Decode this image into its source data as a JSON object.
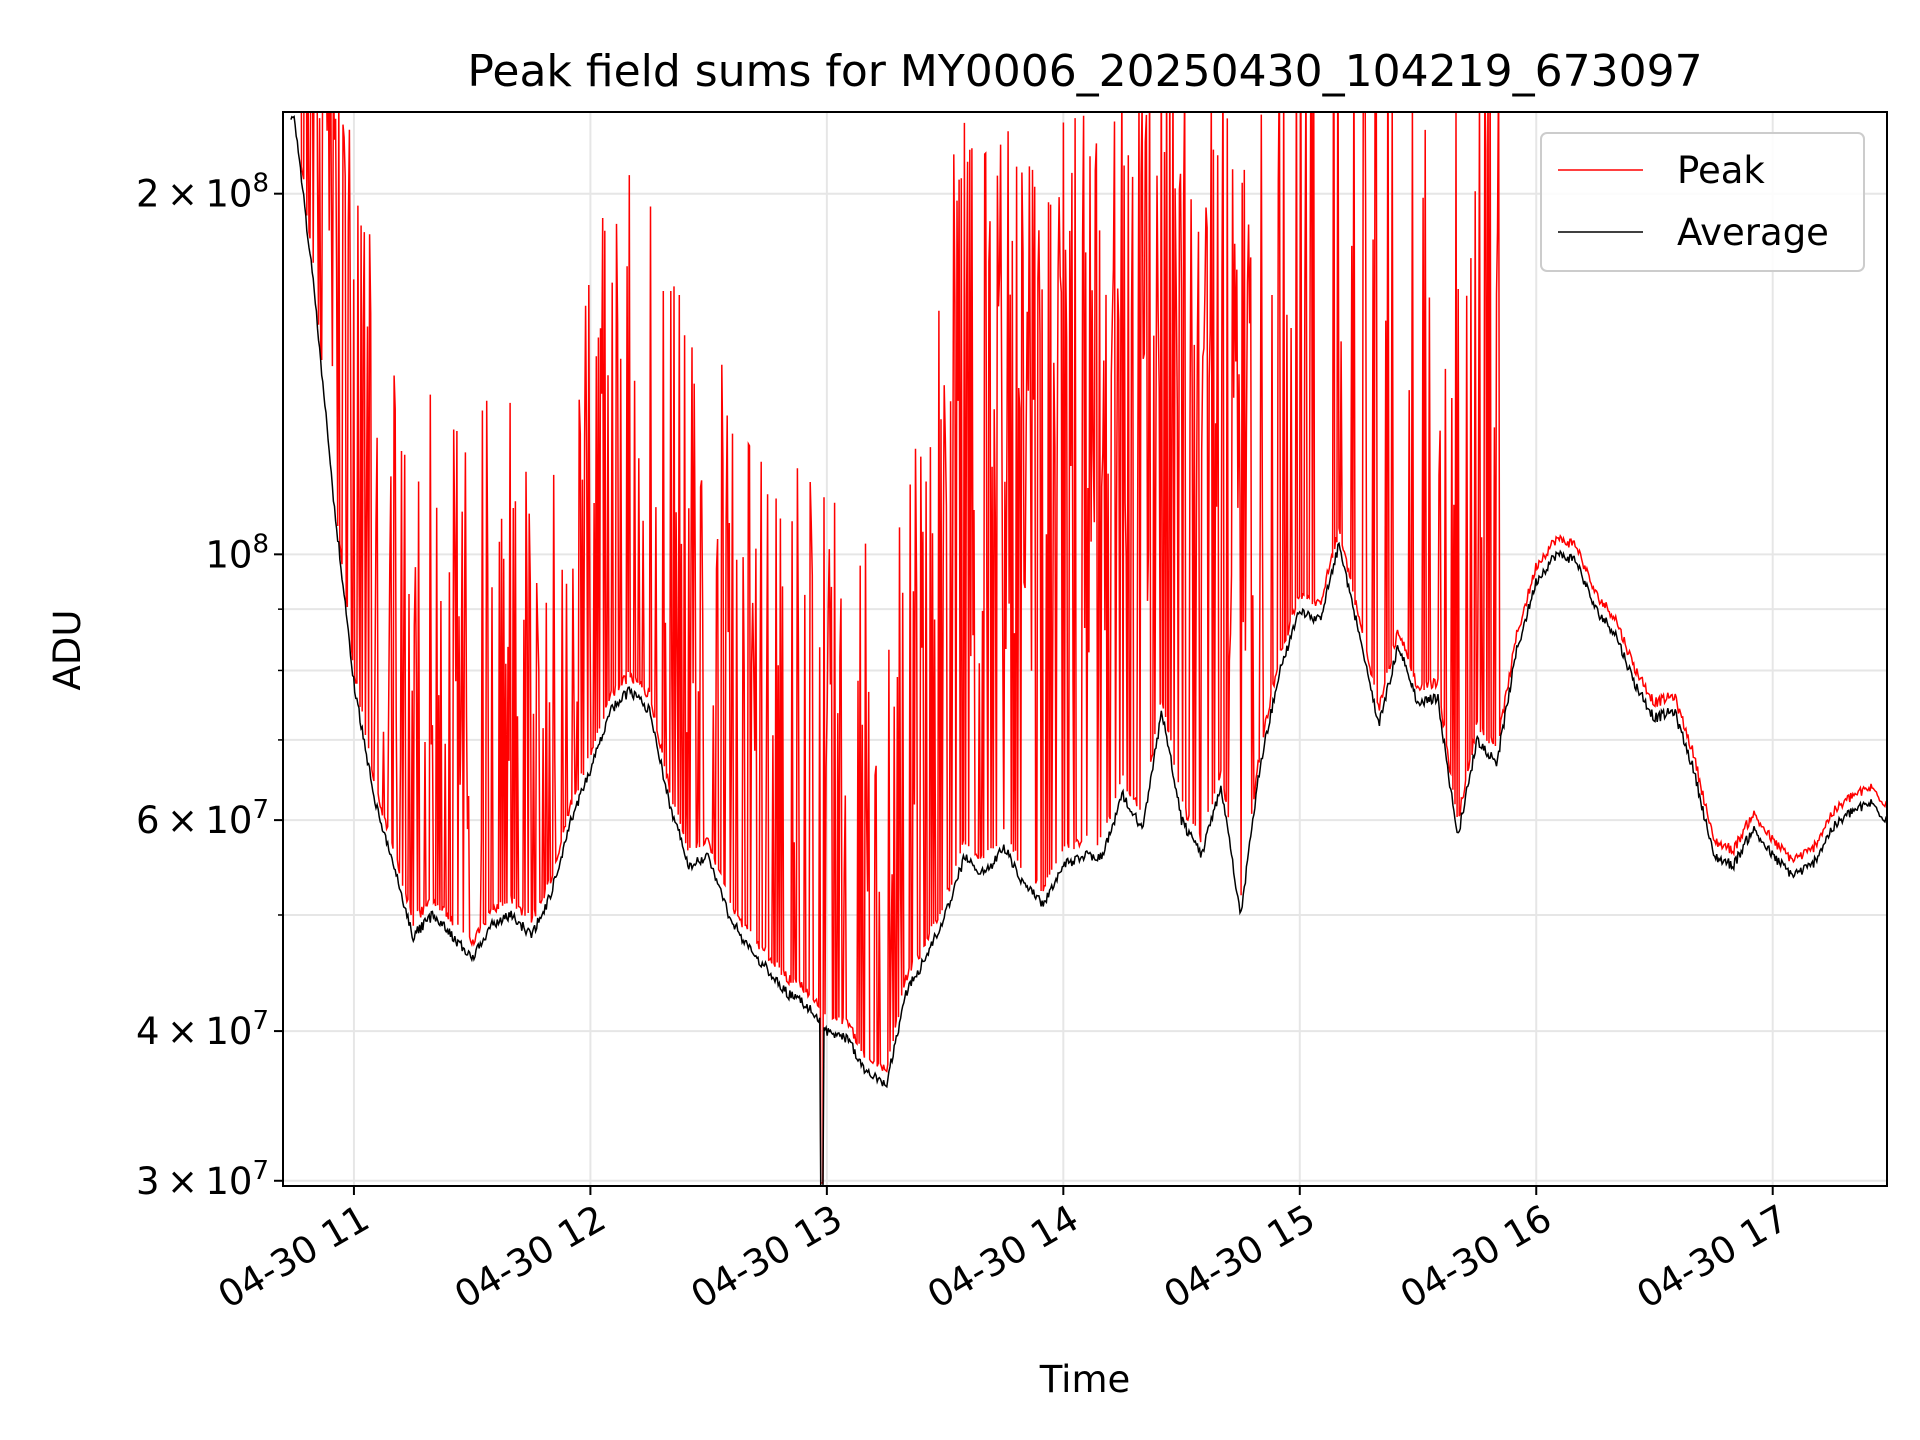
{
  "chart_data": {
    "type": "line",
    "title": "Peak field sums for MY0006_20250430_104219_673097",
    "xlabel": "Time",
    "ylabel": "ADU",
    "yscale": "log",
    "ylim": [
      29700000,
      234000000
    ],
    "xlim": [
      "2025-04-30T10:42",
      "2025-04-30T17:29"
    ],
    "x_ticks": [
      {
        "time": "2025-04-30T11:00",
        "label": "04-30 11"
      },
      {
        "time": "2025-04-30T12:00",
        "label": "04-30 12"
      },
      {
        "time": "2025-04-30T13:00",
        "label": "04-30 13"
      },
      {
        "time": "2025-04-30T14:00",
        "label": "04-30 14"
      },
      {
        "time": "2025-04-30T15:00",
        "label": "04-30 15"
      },
      {
        "time": "2025-04-30T16:00",
        "label": "04-30 16"
      },
      {
        "time": "2025-04-30T17:00",
        "label": "04-30 17"
      }
    ],
    "y_ticks": [
      {
        "value": 30000000,
        "mant": "3",
        "exp": "7"
      },
      {
        "value": 40000000,
        "mant": "4",
        "exp": "7"
      },
      {
        "value": 60000000,
        "mant": "6",
        "exp": "7"
      },
      {
        "value": 100000000,
        "mant": "",
        "exp": "8"
      },
      {
        "value": 200000000,
        "mant": "2",
        "exp": "8"
      }
    ],
    "y_minor_grid": [
      50000000,
      70000000,
      80000000,
      90000000
    ],
    "grid": true,
    "legend_position": "top-right",
    "series": [
      {
        "name": "Average",
        "color": "#000000",
        "x": [
          "2025-04-30T10:45",
          "2025-04-30T10:50",
          "2025-04-30T10:55",
          "2025-04-30T11:00",
          "2025-04-30T11:05",
          "2025-04-30T11:10",
          "2025-04-30T11:15",
          "2025-04-30T11:20",
          "2025-04-30T11:25",
          "2025-04-30T11:30",
          "2025-04-30T11:35",
          "2025-04-30T11:40",
          "2025-04-30T11:45",
          "2025-04-30T11:50",
          "2025-04-30T11:55",
          "2025-04-30T12:00",
          "2025-04-30T12:05",
          "2025-04-30T12:10",
          "2025-04-30T12:15",
          "2025-04-30T12:20",
          "2025-04-30T12:25",
          "2025-04-30T12:30",
          "2025-04-30T12:35",
          "2025-04-30T12:40",
          "2025-04-30T12:45",
          "2025-04-30T12:50",
          "2025-04-30T12:55",
          "2025-04-30T13:00",
          "2025-04-30T13:05",
          "2025-04-30T13:10",
          "2025-04-30T13:15",
          "2025-04-30T13:20",
          "2025-04-30T13:25",
          "2025-04-30T13:30",
          "2025-04-30T13:35",
          "2025-04-30T13:40",
          "2025-04-30T13:45",
          "2025-04-30T13:50",
          "2025-04-30T13:55",
          "2025-04-30T14:00",
          "2025-04-30T14:05",
          "2025-04-30T14:10",
          "2025-04-30T14:15",
          "2025-04-30T14:20",
          "2025-04-30T14:25",
          "2025-04-30T14:30",
          "2025-04-30T14:35",
          "2025-04-30T14:40",
          "2025-04-30T14:45",
          "2025-04-30T14:50",
          "2025-04-30T14:55",
          "2025-04-30T15:00",
          "2025-04-30T15:05",
          "2025-04-30T15:10",
          "2025-04-30T15:15",
          "2025-04-30T15:20",
          "2025-04-30T15:25",
          "2025-04-30T15:30",
          "2025-04-30T15:35",
          "2025-04-30T15:40",
          "2025-04-30T15:45",
          "2025-04-30T15:50",
          "2025-04-30T15:55",
          "2025-04-30T16:00",
          "2025-04-30T16:05",
          "2025-04-30T16:10",
          "2025-04-30T16:15",
          "2025-04-30T16:20",
          "2025-04-30T16:25",
          "2025-04-30T16:30",
          "2025-04-30T16:35",
          "2025-04-30T16:40",
          "2025-04-30T16:45",
          "2025-04-30T16:50",
          "2025-04-30T16:55",
          "2025-04-30T17:00",
          "2025-04-30T17:05",
          "2025-04-30T17:10",
          "2025-04-30T17:15",
          "2025-04-30T17:20",
          "2025-04-30T17:25",
          "2025-04-30T17:29"
        ],
        "values": [
          230000000,
          165000000,
          110000000,
          78000000,
          63000000,
          55000000,
          48000000,
          50000000,
          48000000,
          46000000,
          49000000,
          50000000,
          48000000,
          52000000,
          60000000,
          66000000,
          74000000,
          77000000,
          74000000,
          62000000,
          55000000,
          56000000,
          50000000,
          47000000,
          45000000,
          43000000,
          42000000,
          40000000,
          39500000,
          37000000,
          36000000,
          43000000,
          46000000,
          50000000,
          56000000,
          54000000,
          57000000,
          53000000,
          51000000,
          55000000,
          56000000,
          56000000,
          63000000,
          59000000,
          74000000,
          60000000,
          56000000,
          64000000,
          50000000,
          67000000,
          80000000,
          90000000,
          88000000,
          102000000,
          86000000,
          72000000,
          84000000,
          75000000,
          76000000,
          58000000,
          70000000,
          67000000,
          83000000,
          95000000,
          100000000,
          99000000,
          90000000,
          86000000,
          78000000,
          73000000,
          74000000,
          66000000,
          56000000,
          55000000,
          59000000,
          56000000,
          54000000,
          55000000,
          59000000,
          61000000,
          62000000,
          60000000
        ]
      },
      {
        "name": "Peak",
        "color": "#ff0000"
      }
    ]
  }
}
